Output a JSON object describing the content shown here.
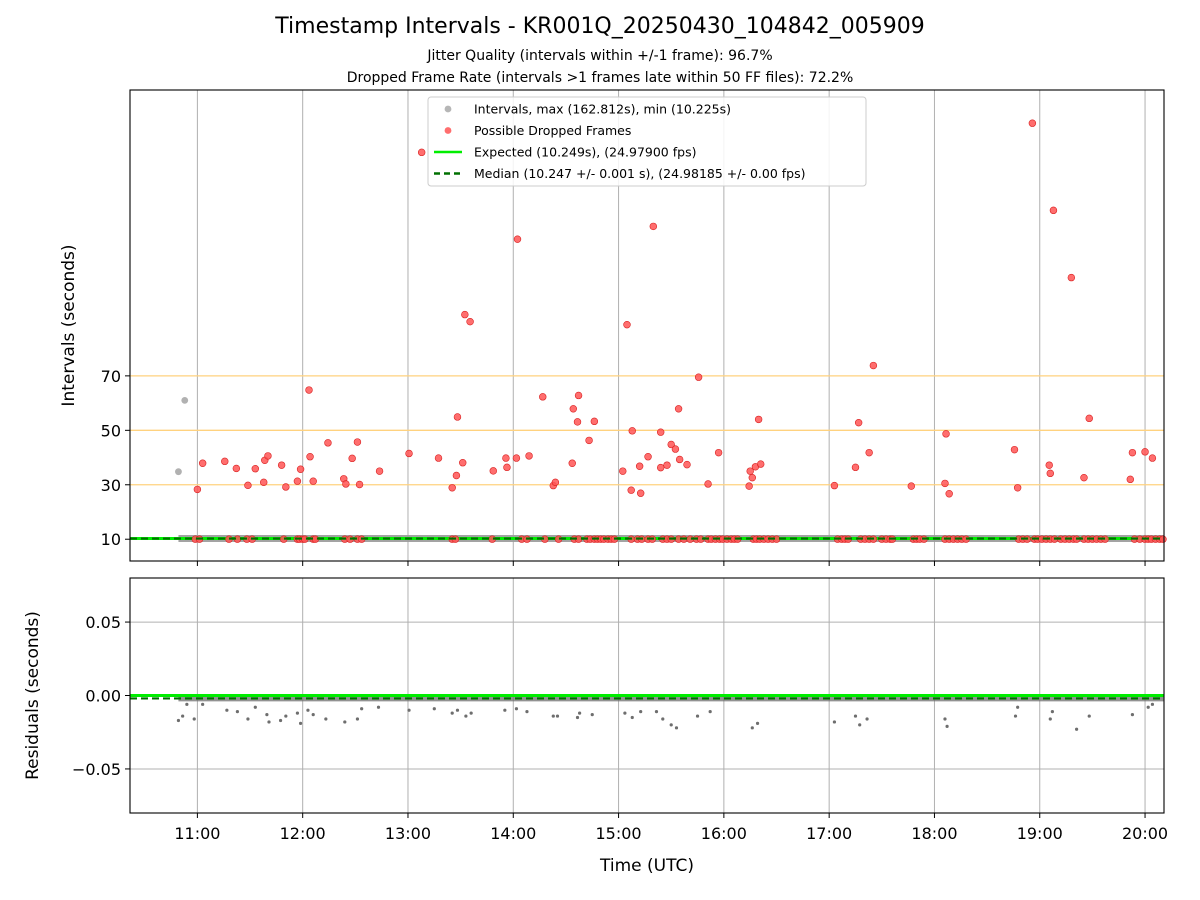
{
  "chart_data": [
    {
      "type": "scatter",
      "title": "Timestamp Intervals - KR001Q_20250430_104842_005909",
      "subtitle_lines": [
        "Jitter Quality (intervals within +/-1 frame): 96.7%",
        "Dropped Frame Rate (intervals >1 frames late within 50 FF files): 72.2%"
      ],
      "xlabel": "",
      "ylabel": "Intervals (seconds)",
      "xlim": [
        10.36,
        20.18
      ],
      "ylim": [
        2.0,
        175.0
      ],
      "grid": true,
      "x_ticks": [
        11,
        12,
        13,
        14,
        15,
        16,
        17,
        18,
        19,
        20
      ],
      "y_ticks": [
        10,
        30,
        50,
        70
      ],
      "y_tick_labels": [
        "10",
        "30",
        "50",
        "70"
      ],
      "threshold_lines": [
        30,
        50,
        70
      ],
      "threshold_color": "#ffd27f",
      "legend_position": "top-center",
      "legend": [
        {
          "label": "Intervals, max (162.812s), min (10.225s)",
          "marker": "point",
          "color": "#a9a9a9"
        },
        {
          "label": "Possible Dropped Frames",
          "marker": "point",
          "color": "#ff5555"
        },
        {
          "label": "Expected (10.249s), (24.97900 fps)",
          "marker": "solid-line",
          "color": "#00ee00"
        },
        {
          "label": "Median (10.247 +/- 0.001 s), (24.98185 +/- 0.00 fps)",
          "marker": "dashed-line",
          "color": "#007000"
        }
      ],
      "expected_value": 10.249,
      "median_value": 10.247,
      "normal_interval_range": [
        10.82,
        20.18
      ],
      "normal_points": [
        {
          "x": 10.82,
          "y": 34.8
        },
        {
          "x": 10.88,
          "y": 61.0
        }
      ],
      "dropped_points": [
        {
          "x": 11.0,
          "y": 28.3
        },
        {
          "x": 11.05,
          "y": 37.9
        },
        {
          "x": 11.26,
          "y": 38.6
        },
        {
          "x": 11.37,
          "y": 36.0
        },
        {
          "x": 11.48,
          "y": 29.8
        },
        {
          "x": 11.55,
          "y": 35.9
        },
        {
          "x": 11.63,
          "y": 30.9
        },
        {
          "x": 11.64,
          "y": 39.0
        },
        {
          "x": 11.67,
          "y": 40.6
        },
        {
          "x": 11.8,
          "y": 37.2
        },
        {
          "x": 11.84,
          "y": 29.2
        },
        {
          "x": 11.95,
          "y": 31.3
        },
        {
          "x": 11.98,
          "y": 35.7
        },
        {
          "x": 12.06,
          "y": 64.8
        },
        {
          "x": 12.07,
          "y": 40.3
        },
        {
          "x": 12.1,
          "y": 31.3
        },
        {
          "x": 12.24,
          "y": 45.4
        },
        {
          "x": 12.39,
          "y": 32.2
        },
        {
          "x": 12.41,
          "y": 30.3
        },
        {
          "x": 12.47,
          "y": 39.7
        },
        {
          "x": 12.52,
          "y": 45.7
        },
        {
          "x": 12.54,
          "y": 30.1
        },
        {
          "x": 12.73,
          "y": 35.0
        },
        {
          "x": 13.01,
          "y": 41.5
        },
        {
          "x": 13.13,
          "y": 152.1
        },
        {
          "x": 13.29,
          "y": 39.8
        },
        {
          "x": 13.42,
          "y": 28.9
        },
        {
          "x": 13.46,
          "y": 33.4
        },
        {
          "x": 13.47,
          "y": 54.9
        },
        {
          "x": 13.52,
          "y": 38.1
        },
        {
          "x": 13.54,
          "y": 92.5
        },
        {
          "x": 13.59,
          "y": 89.9
        },
        {
          "x": 13.81,
          "y": 35.1
        },
        {
          "x": 13.93,
          "y": 39.8
        },
        {
          "x": 13.94,
          "y": 36.4
        },
        {
          "x": 14.03,
          "y": 39.8
        },
        {
          "x": 14.04,
          "y": 120.2
        },
        {
          "x": 14.15,
          "y": 40.6
        },
        {
          "x": 14.28,
          "y": 62.3
        },
        {
          "x": 14.38,
          "y": 29.7
        },
        {
          "x": 14.4,
          "y": 30.9
        },
        {
          "x": 14.56,
          "y": 37.9
        },
        {
          "x": 14.57,
          "y": 57.9
        },
        {
          "x": 14.61,
          "y": 53.1
        },
        {
          "x": 14.62,
          "y": 62.8
        },
        {
          "x": 14.72,
          "y": 46.3
        },
        {
          "x": 14.77,
          "y": 53.3
        },
        {
          "x": 15.04,
          "y": 35.0
        },
        {
          "x": 15.08,
          "y": 88.8
        },
        {
          "x": 15.12,
          "y": 28.0
        },
        {
          "x": 15.13,
          "y": 49.8
        },
        {
          "x": 15.2,
          "y": 36.8
        },
        {
          "x": 15.21,
          "y": 26.9
        },
        {
          "x": 15.28,
          "y": 40.3
        },
        {
          "x": 15.33,
          "y": 124.9
        },
        {
          "x": 15.4,
          "y": 49.3
        },
        {
          "x": 15.4,
          "y": 36.3
        },
        {
          "x": 15.46,
          "y": 37.2
        },
        {
          "x": 15.5,
          "y": 44.8
        },
        {
          "x": 15.54,
          "y": 43.1
        },
        {
          "x": 15.57,
          "y": 57.9
        },
        {
          "x": 15.58,
          "y": 39.3
        },
        {
          "x": 15.65,
          "y": 37.4
        },
        {
          "x": 15.76,
          "y": 69.5
        },
        {
          "x": 15.85,
          "y": 30.3
        },
        {
          "x": 15.95,
          "y": 41.8
        },
        {
          "x": 16.24,
          "y": 29.5
        },
        {
          "x": 16.25,
          "y": 35.0
        },
        {
          "x": 16.27,
          "y": 32.6
        },
        {
          "x": 16.3,
          "y": 36.6
        },
        {
          "x": 16.33,
          "y": 54.0
        },
        {
          "x": 16.35,
          "y": 37.6
        },
        {
          "x": 17.05,
          "y": 29.7
        },
        {
          "x": 17.25,
          "y": 36.4
        },
        {
          "x": 17.28,
          "y": 52.8
        },
        {
          "x": 17.38,
          "y": 41.8
        },
        {
          "x": 17.42,
          "y": 73.8
        },
        {
          "x": 17.78,
          "y": 29.5
        },
        {
          "x": 18.1,
          "y": 30.5
        },
        {
          "x": 18.11,
          "y": 48.7
        },
        {
          "x": 18.14,
          "y": 26.7
        },
        {
          "x": 18.76,
          "y": 42.9
        },
        {
          "x": 18.79,
          "y": 28.9
        },
        {
          "x": 18.93,
          "y": 162.8
        },
        {
          "x": 19.09,
          "y": 37.2
        },
        {
          "x": 19.1,
          "y": 34.2
        },
        {
          "x": 19.13,
          "y": 130.8
        },
        {
          "x": 19.3,
          "y": 106.1
        },
        {
          "x": 19.42,
          "y": 32.6
        },
        {
          "x": 19.47,
          "y": 54.4
        },
        {
          "x": 19.86,
          "y": 32.0
        },
        {
          "x": 19.88,
          "y": 41.8
        },
        {
          "x": 20.0,
          "y": 42.1
        },
        {
          "x": 20.07,
          "y": 39.8
        }
      ],
      "dropped_points_at_baseline": [
        10.98,
        11.02,
        11.3,
        11.38,
        11.47,
        11.52,
        11.82,
        11.95,
        11.97,
        12.0,
        12.02,
        12.1,
        12.12,
        12.4,
        12.45,
        12.52,
        12.56,
        13.42,
        13.45,
        13.8,
        14.08,
        14.13,
        14.3,
        14.43,
        14.58,
        14.62,
        14.7,
        14.73,
        14.77,
        14.8,
        14.83,
        14.86,
        14.9,
        14.93,
        14.96,
        15.12,
        15.18,
        15.22,
        15.28,
        15.32,
        15.42,
        15.46,
        15.5,
        15.57,
        15.62,
        15.68,
        15.74,
        15.78,
        15.85,
        15.88,
        15.92,
        15.96,
        15.99,
        16.03,
        16.07,
        16.1,
        16.13,
        16.28,
        16.31,
        16.34,
        16.38,
        16.42,
        16.46,
        16.5,
        17.08,
        17.12,
        17.15,
        17.18,
        17.3,
        17.34,
        17.38,
        17.42,
        17.5,
        17.54,
        17.58,
        17.6,
        17.8,
        17.83,
        17.86,
        17.9,
        18.1,
        18.14,
        18.18,
        18.22,
        18.26,
        18.3,
        18.8,
        18.84,
        18.88,
        18.95,
        18.98,
        19.02,
        19.06,
        19.1,
        19.14,
        19.2,
        19.24,
        19.28,
        19.32,
        19.35,
        19.42,
        19.46,
        19.5,
        19.54,
        19.58,
        19.62,
        19.9,
        19.95,
        20.0,
        20.03,
        20.06,
        20.1,
        20.14,
        20.17
      ],
      "dropped_baseline_value": 10.0
    },
    {
      "type": "scatter",
      "xlabel": "Time (UTC)",
      "ylabel": "Residuals (seconds)",
      "xlim": [
        10.36,
        20.18
      ],
      "ylim": [
        -0.08,
        0.08
      ],
      "grid": true,
      "x_ticks": [
        11,
        12,
        13,
        14,
        15,
        16,
        17,
        18,
        19,
        20
      ],
      "x_tick_labels": [
        "11:00",
        "12:00",
        "13:00",
        "14:00",
        "15:00",
        "16:00",
        "17:00",
        "18:00",
        "19:00",
        "20:00"
      ],
      "y_ticks": [
        0.05,
        0.0,
        -0.05
      ],
      "y_tick_labels": [
        "0.05",
        "0.00",
        "−0.05"
      ],
      "residual_color": "#6e6e6e",
      "residual_points": [
        {
          "x": 10.82,
          "y": -0.017
        },
        {
          "x": 10.86,
          "y": -0.014
        },
        {
          "x": 10.9,
          "y": -0.006
        },
        {
          "x": 10.97,
          "y": -0.016
        },
        {
          "x": 11.05,
          "y": -0.006
        },
        {
          "x": 11.28,
          "y": -0.01
        },
        {
          "x": 11.38,
          "y": -0.011
        },
        {
          "x": 11.48,
          "y": -0.016
        },
        {
          "x": 11.55,
          "y": -0.008
        },
        {
          "x": 11.66,
          "y": -0.013
        },
        {
          "x": 11.68,
          "y": -0.018
        },
        {
          "x": 11.79,
          "y": -0.017
        },
        {
          "x": 11.84,
          "y": -0.014
        },
        {
          "x": 11.95,
          "y": -0.012
        },
        {
          "x": 11.98,
          "y": -0.019
        },
        {
          "x": 12.05,
          "y": -0.01
        },
        {
          "x": 12.1,
          "y": -0.013
        },
        {
          "x": 12.22,
          "y": -0.016
        },
        {
          "x": 12.4,
          "y": -0.018
        },
        {
          "x": 12.52,
          "y": -0.016
        },
        {
          "x": 12.56,
          "y": -0.009
        },
        {
          "x": 12.72,
          "y": -0.008
        },
        {
          "x": 13.01,
          "y": -0.01
        },
        {
          "x": 13.25,
          "y": -0.009
        },
        {
          "x": 13.42,
          "y": -0.012
        },
        {
          "x": 13.47,
          "y": -0.01
        },
        {
          "x": 13.55,
          "y": -0.014
        },
        {
          "x": 13.6,
          "y": -0.012
        },
        {
          "x": 13.92,
          "y": -0.01
        },
        {
          "x": 14.03,
          "y": -0.009
        },
        {
          "x": 14.13,
          "y": -0.011
        },
        {
          "x": 14.38,
          "y": -0.014
        },
        {
          "x": 14.42,
          "y": -0.014
        },
        {
          "x": 14.61,
          "y": -0.015
        },
        {
          "x": 14.63,
          "y": -0.012
        },
        {
          "x": 14.75,
          "y": -0.013
        },
        {
          "x": 15.06,
          "y": -0.012
        },
        {
          "x": 15.13,
          "y": -0.015
        },
        {
          "x": 15.21,
          "y": -0.011
        },
        {
          "x": 15.36,
          "y": -0.011
        },
        {
          "x": 15.42,
          "y": -0.016
        },
        {
          "x": 15.5,
          "y": -0.02
        },
        {
          "x": 15.55,
          "y": -0.022
        },
        {
          "x": 15.75,
          "y": -0.014
        },
        {
          "x": 15.87,
          "y": -0.011
        },
        {
          "x": 16.27,
          "y": -0.022
        },
        {
          "x": 16.32,
          "y": -0.019
        },
        {
          "x": 17.05,
          "y": -0.018
        },
        {
          "x": 17.25,
          "y": -0.014
        },
        {
          "x": 17.29,
          "y": -0.02
        },
        {
          "x": 17.36,
          "y": -0.016
        },
        {
          "x": 18.1,
          "y": -0.016
        },
        {
          "x": 18.12,
          "y": -0.021
        },
        {
          "x": 18.77,
          "y": -0.014
        },
        {
          "x": 18.79,
          "y": -0.008
        },
        {
          "x": 19.1,
          "y": -0.016
        },
        {
          "x": 19.12,
          "y": -0.011
        },
        {
          "x": 19.35,
          "y": -0.023
        },
        {
          "x": 19.47,
          "y": -0.014
        },
        {
          "x": 19.88,
          "y": -0.013
        },
        {
          "x": 20.03,
          "y": -0.008
        },
        {
          "x": 20.07,
          "y": -0.006
        }
      ],
      "residual_band": [
        -0.004,
        -0.0005
      ],
      "median_residual": -0.002
    }
  ]
}
